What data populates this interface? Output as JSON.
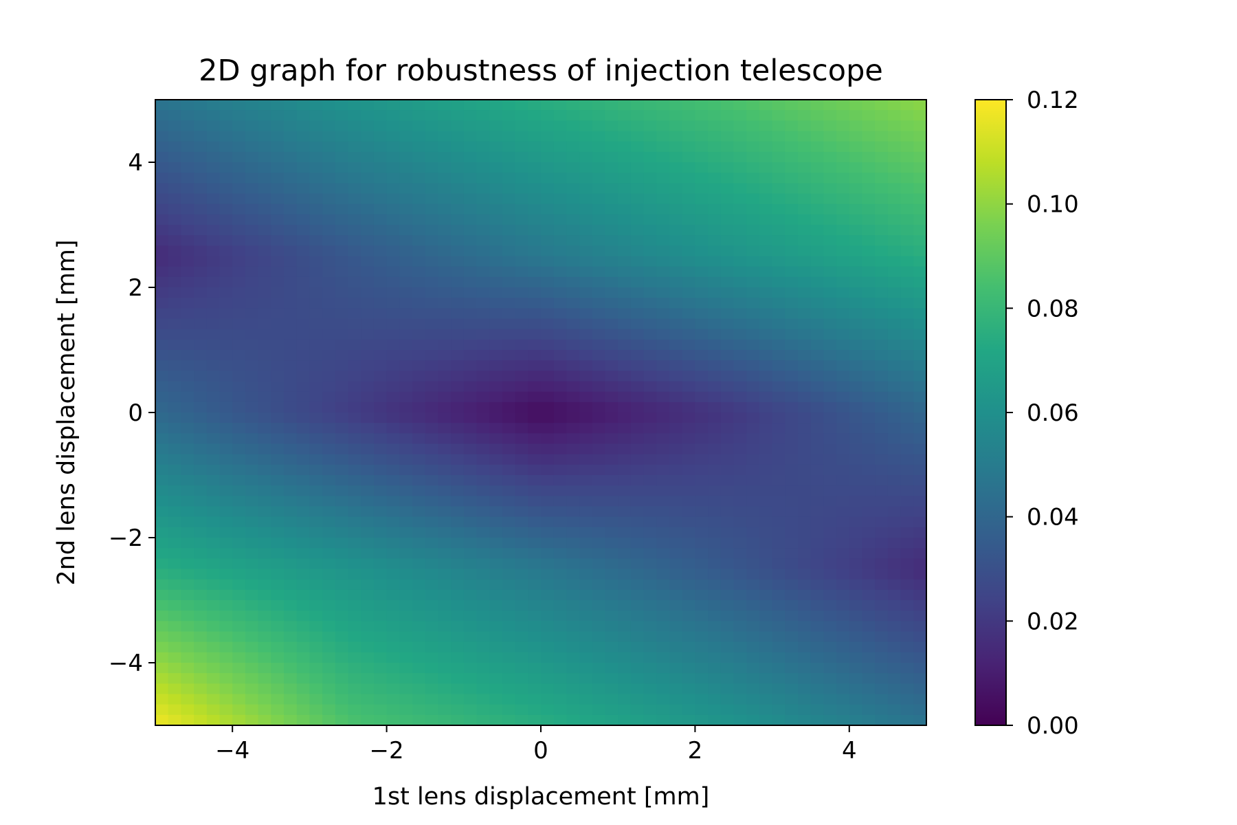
{
  "chart_data": {
    "type": "heatmap",
    "title": "2D graph for robustness of injection telescope",
    "xlabel": "1st lens displacement [mm]",
    "ylabel": "2nd lens displacement [mm]",
    "xlim": [
      -5,
      5
    ],
    "ylim": [
      -5,
      5
    ],
    "x_ticks": [
      -4,
      -2,
      0,
      2,
      4
    ],
    "x_tick_labels": [
      "−4",
      "−2",
      "0",
      "2",
      "4"
    ],
    "y_ticks": [
      -4,
      -2,
      0,
      2,
      4
    ],
    "y_tick_labels": [
      "−4",
      "−2",
      "0",
      "2",
      "4"
    ],
    "colormap": "viridis",
    "colorbar": {
      "range": [
        0.0,
        0.12
      ],
      "ticks": [
        0.0,
        0.02,
        0.04,
        0.06,
        0.08,
        0.1,
        0.12
      ],
      "tick_labels": [
        "0.00",
        "0.02",
        "0.04",
        "0.06",
        "0.08",
        "0.10",
        "0.12"
      ],
      "placement": "right"
    },
    "grid": false,
    "z_grid": {
      "x": [
        -5,
        -2.5,
        0,
        2.5,
        5
      ],
      "y": [
        5,
        2.5,
        0,
        -2.5,
        -5
      ],
      "values": [
        [
          0.046,
          0.062,
          0.075,
          0.086,
          0.1
        ],
        [
          0.015,
          0.033,
          0.048,
          0.062,
          0.075
        ],
        [
          0.041,
          0.022,
          0.004,
          0.02,
          0.04
        ],
        [
          0.075,
          0.062,
          0.048,
          0.033,
          0.015
        ],
        [
          0.118,
          0.086,
          0.075,
          0.062,
          0.046
        ]
      ]
    }
  }
}
